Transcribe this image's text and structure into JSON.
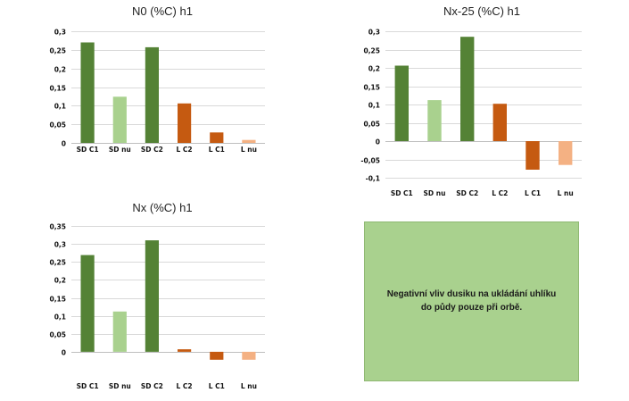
{
  "colors": {
    "dark_green": "#548235",
    "light_green": "#a9d18e",
    "dark_orange": "#c55a11",
    "light_orange": "#f4b183",
    "note_bg": "#a9d18e"
  },
  "chart_data": [
    {
      "type": "bar",
      "title": "N0 (%C) h1",
      "categories": [
        "SD C1",
        "SD nu",
        "SD C2",
        "L C2",
        "L C1",
        "L nu"
      ],
      "values": [
        0.27,
        0.124,
        0.257,
        0.106,
        0.028,
        0.008
      ],
      "bar_colors": [
        "#548235",
        "#a9d18e",
        "#548235",
        "#c55a11",
        "#c55a11",
        "#f4b183"
      ],
      "ylim": [
        0,
        0.3
      ],
      "yticks": [
        "0",
        "0,05",
        "0,1",
        "0,15",
        "0,2",
        "0,25",
        "0,3"
      ],
      "grid": true,
      "xlabel": "",
      "ylabel": ""
    },
    {
      "type": "bar",
      "title": "Nx-25 (%C) h1",
      "categories": [
        "SD C1",
        "SD nu",
        "SD C2",
        "L C2",
        "L C1",
        "L nu"
      ],
      "values": [
        0.206,
        0.112,
        0.285,
        0.102,
        -0.078,
        -0.065
      ],
      "bar_colors": [
        "#548235",
        "#a9d18e",
        "#548235",
        "#c55a11",
        "#c55a11",
        "#f4b183"
      ],
      "ylim": [
        -0.1,
        0.3
      ],
      "yticks": [
        "-0,1",
        "-0,05",
        "0",
        "0,05",
        "0,1",
        "0,15",
        "0,2",
        "0,25",
        "0,3"
      ],
      "grid": true,
      "xlabel": "",
      "ylabel": ""
    },
    {
      "type": "bar",
      "title": "Nx (%C) h1",
      "categories": [
        "SD C1",
        "SD nu",
        "SD C2",
        "L C2",
        "L C1",
        "L nu"
      ],
      "values": [
        0.269,
        0.112,
        0.31,
        0.007,
        -0.022,
        -0.022
      ],
      "bar_colors": [
        "#548235",
        "#a9d18e",
        "#548235",
        "#c55a11",
        "#c55a11",
        "#f4b183"
      ],
      "ylim": [
        -0.03,
        0.35
      ],
      "yticks": [
        "0",
        "0,05",
        "0,1",
        "0,15",
        "0,2",
        "0,25",
        "0,3",
        "0,35"
      ],
      "grid": true,
      "xlabel": "",
      "ylabel": ""
    }
  ],
  "note": {
    "text": "Negativní vliv dusiku na ukládání uhlíku do půdy pouze při orbě."
  }
}
